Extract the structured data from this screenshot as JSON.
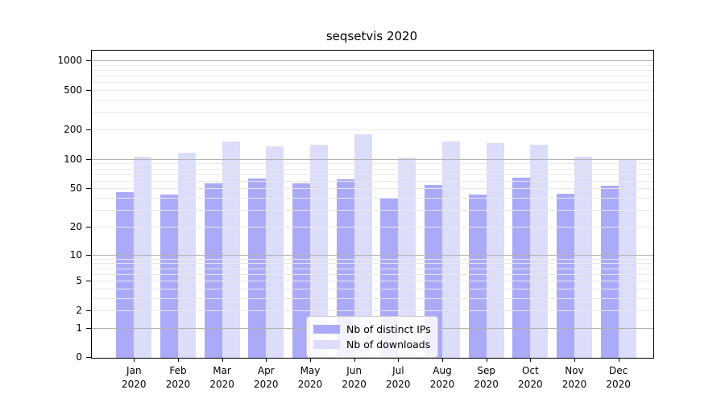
{
  "chart_data": {
    "type": "bar",
    "title": "seqsetvis 2020",
    "categories": [
      "Jan",
      "Feb",
      "Mar",
      "Apr",
      "May",
      "Jun",
      "Jul",
      "Aug",
      "Sep",
      "Oct",
      "Nov",
      "Dec"
    ],
    "year_label": "2020",
    "series": [
      {
        "name": "Nb of distinct IPs",
        "color": "#aaaaf8",
        "values": [
          46,
          43,
          56,
          63,
          57,
          62,
          40,
          54,
          43,
          64,
          44,
          53
        ]
      },
      {
        "name": "Nb of downloads",
        "color": "#dcdcfb",
        "values": [
          106,
          117,
          152,
          135,
          139,
          179,
          104,
          150,
          145,
          141,
          106,
          100
        ]
      }
    ],
    "xlabel": "",
    "ylabel": "",
    "y_scale": "log1p",
    "ylim": [
      0,
      1000
    ],
    "y_ticks_labeled": [
      0,
      1,
      2,
      5,
      10,
      20,
      50,
      100,
      200,
      500,
      1000
    ],
    "y_major_grid": [
      1,
      10,
      100,
      1000
    ],
    "y_minor_grid": [
      2,
      3,
      4,
      5,
      6,
      7,
      8,
      9,
      20,
      30,
      40,
      50,
      60,
      70,
      80,
      90,
      200,
      300,
      400,
      500,
      600,
      700,
      800,
      900
    ],
    "grid": true,
    "legend_position": "lower center",
    "colors": {
      "background": "#ffffff",
      "axis": "#000000",
      "major_grid": "#b2b2b2",
      "minor_grid": "#e8e8e8"
    }
  }
}
